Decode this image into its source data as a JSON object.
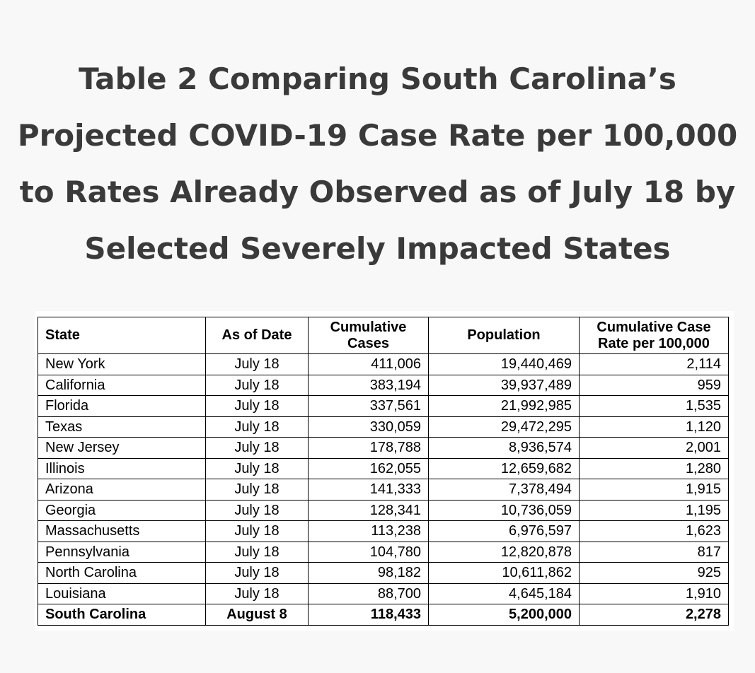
{
  "title": {
    "line1": "Table 2 Comparing South Carolina’s",
    "line2": "Projected COVID-19 Case Rate per 100,000",
    "line3": "to Rates Already Observed as of July 18 by",
    "line4": "Selected Severely Impacted States"
  },
  "table": {
    "headers": {
      "state": "State",
      "date": "As of Date",
      "cases_line1": "Cumulative",
      "cases_line2": "Cases",
      "population": "Population",
      "rate_line1": "Cumulative Case",
      "rate_line2": "Rate per 100,000"
    },
    "rows": [
      {
        "state": "New York",
        "date": "July 18",
        "cases": "411,006",
        "population": "19,440,469",
        "rate": "2,114"
      },
      {
        "state": "California",
        "date": "July 18",
        "cases": "383,194",
        "population": "39,937,489",
        "rate": "959"
      },
      {
        "state": "Florida",
        "date": "July 18",
        "cases": "337,561",
        "population": "21,992,985",
        "rate": "1,535"
      },
      {
        "state": "Texas",
        "date": "July 18",
        "cases": "330,059",
        "population": "29,472,295",
        "rate": "1,120"
      },
      {
        "state": "New Jersey",
        "date": "July 18",
        "cases": "178,788",
        "population": "8,936,574",
        "rate": "2,001"
      },
      {
        "state": "Illinois",
        "date": "July 18",
        "cases": "162,055",
        "population": "12,659,682",
        "rate": "1,280"
      },
      {
        "state": "Arizona",
        "date": "July 18",
        "cases": "141,333",
        "population": "7,378,494",
        "rate": "1,915"
      },
      {
        "state": "Georgia",
        "date": "July 18",
        "cases": "128,341",
        "population": "10,736,059",
        "rate": "1,195"
      },
      {
        "state": "Massachusetts",
        "date": "July 18",
        "cases": "113,238",
        "population": "6,976,597",
        "rate": "1,623"
      },
      {
        "state": "Pennsylvania",
        "date": "July 18",
        "cases": "104,780",
        "population": "12,820,878",
        "rate": "817"
      },
      {
        "state": "North Carolina",
        "date": "July 18",
        "cases": "98,182",
        "population": "10,611,862",
        "rate": "925"
      },
      {
        "state": "Louisiana",
        "date": "July 18",
        "cases": "88,700",
        "population": "4,645,184",
        "rate": "1,910"
      }
    ],
    "total": {
      "state": "South Carolina",
      "date": "August 8",
      "cases": "118,433",
      "population": "5,200,000",
      "rate": "2,278"
    }
  }
}
